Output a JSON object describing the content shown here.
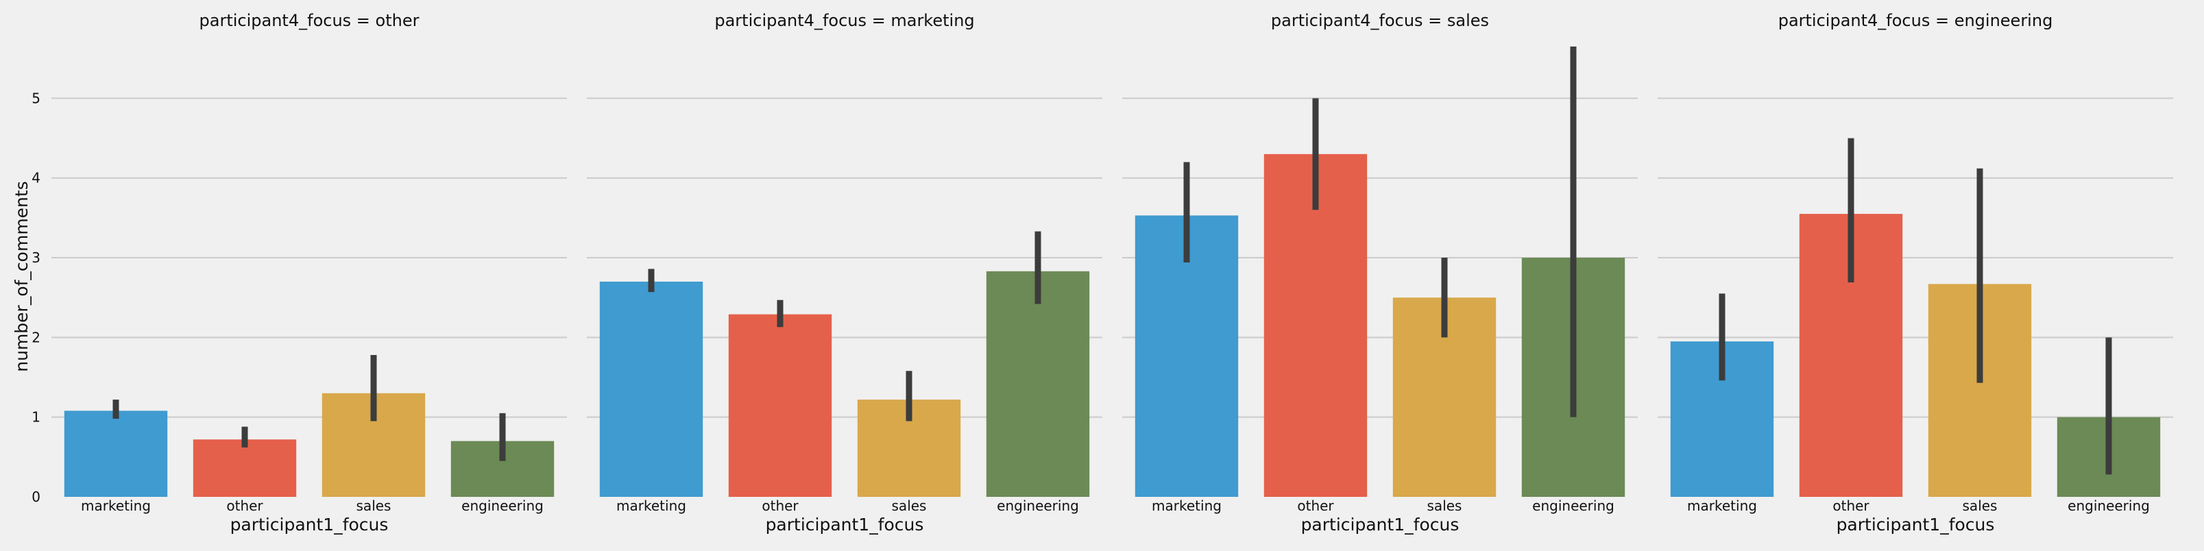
{
  "chart_data": {
    "type": "bar",
    "facet_variable": "participant4_focus",
    "xlabel": "participant1_focus",
    "ylabel": "number_of_comments",
    "categories": [
      "marketing",
      "other",
      "sales",
      "engineering"
    ],
    "ylim": [
      0,
      5.7
    ],
    "yticks": [
      "0",
      "1",
      "2",
      "3",
      "4",
      "5"
    ],
    "colors": [
      "#3f9bd0",
      "#e5604a",
      "#d9a84b",
      "#6b8a55"
    ],
    "error_bar_color": "#3c3c3c",
    "grid": true,
    "panels": [
      {
        "title": "participant4_focus = other",
        "values": [
          1.08,
          0.72,
          1.3,
          0.7
        ],
        "ci": [
          [
            0.98,
            1.22
          ],
          [
            0.62,
            0.88
          ],
          [
            0.95,
            1.78
          ],
          [
            0.45,
            1.05
          ]
        ]
      },
      {
        "title": "participant4_focus = marketing",
        "values": [
          2.7,
          2.29,
          1.22,
          2.83
        ],
        "ci": [
          [
            2.57,
            2.86
          ],
          [
            2.13,
            2.47
          ],
          [
            0.95,
            1.58
          ],
          [
            2.42,
            3.33
          ]
        ]
      },
      {
        "title": "participant4_focus = sales",
        "values": [
          3.53,
          4.3,
          2.5,
          3.0
        ],
        "ci": [
          [
            2.94,
            4.2
          ],
          [
            3.6,
            5.0
          ],
          [
            2.0,
            3.0
          ],
          [
            1.0,
            5.65
          ]
        ]
      },
      {
        "title": "participant4_focus = engineering",
        "values": [
          1.95,
          3.55,
          2.67,
          1.0
        ],
        "ci": [
          [
            1.46,
            2.55
          ],
          [
            2.69,
            4.5
          ],
          [
            1.43,
            4.12
          ],
          [
            0.28,
            2.0
          ]
        ]
      }
    ]
  }
}
